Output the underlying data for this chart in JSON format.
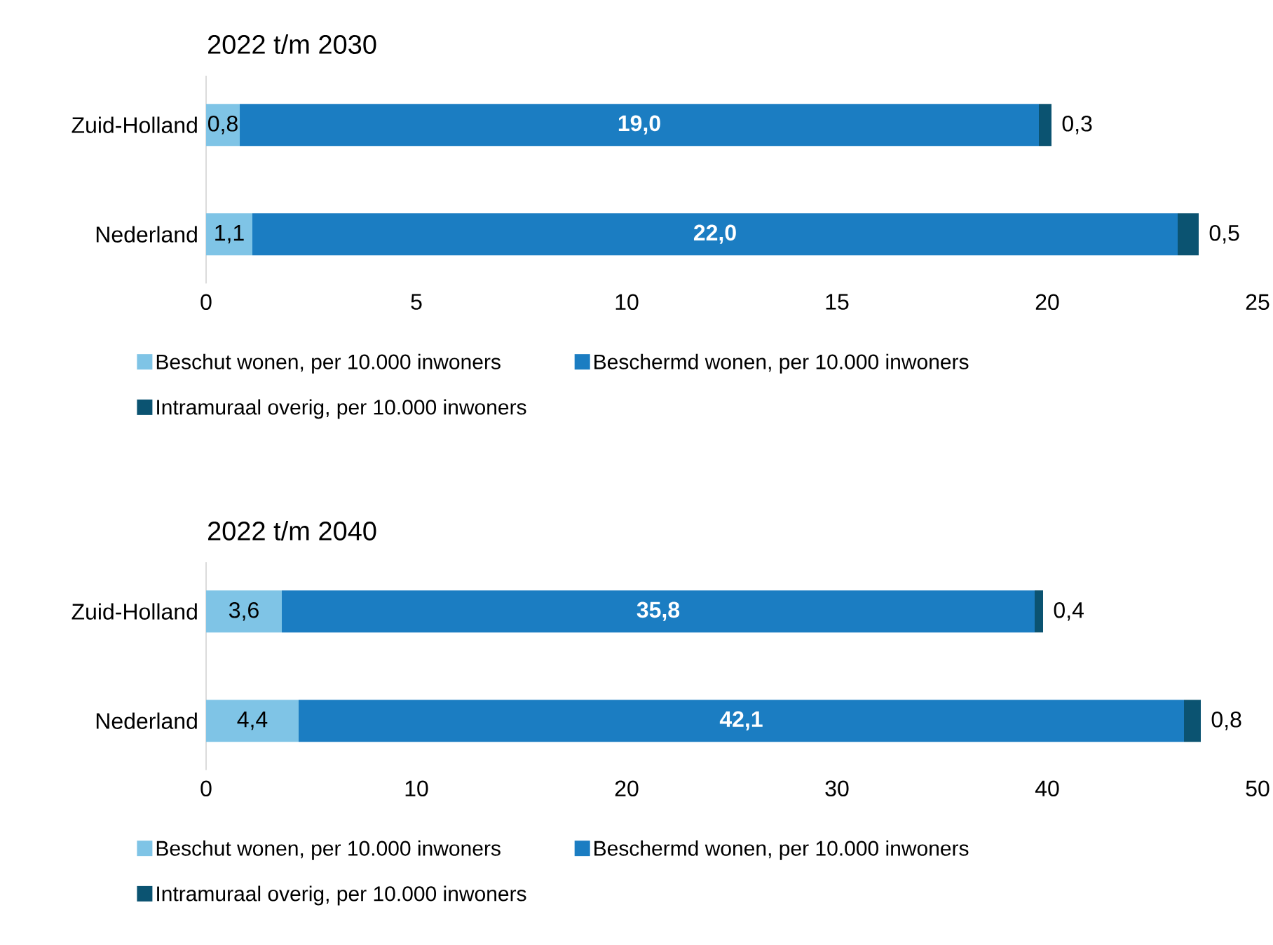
{
  "chart_data": [
    {
      "type": "bar",
      "orientation": "horizontal",
      "stacked": true,
      "title": "2022 t/m 2030",
      "categories": [
        "Zuid-Holland",
        "Nederland"
      ],
      "series": [
        {
          "name": "Beschut wonen, per 10.000 inwoners",
          "color": "#7fc4e6",
          "values": [
            0.8,
            1.1
          ],
          "value_labels": [
            "0,8",
            "1,1"
          ]
        },
        {
          "name": "Beschermd wonen, per 10.000 inwoners",
          "color": "#1b7dc2",
          "values": [
            19.0,
            22.0
          ],
          "value_labels": [
            "19,0",
            "22,0"
          ]
        },
        {
          "name": "Intramuraal overig, per 10.000 inwoners",
          "color": "#0b5371",
          "values": [
            0.3,
            0.5
          ],
          "value_labels": [
            "0,3",
            "0,5"
          ]
        }
      ],
      "xlim": [
        0,
        25
      ],
      "xticks": [
        0,
        5,
        10,
        15,
        20,
        25
      ],
      "legend": "bottom"
    },
    {
      "type": "bar",
      "orientation": "horizontal",
      "stacked": true,
      "title": "2022 t/m 2040",
      "categories": [
        "Zuid-Holland",
        "Nederland"
      ],
      "series": [
        {
          "name": "Beschut wonen, per 10.000 inwoners",
          "color": "#7fc4e6",
          "values": [
            3.6,
            4.4
          ],
          "value_labels": [
            "3,6",
            "4,4"
          ]
        },
        {
          "name": "Beschermd wonen, per 10.000 inwoners",
          "color": "#1b7dc2",
          "values": [
            35.8,
            42.1
          ],
          "value_labels": [
            "35,8",
            "42,1"
          ]
        },
        {
          "name": "Intramuraal overig, per 10.000 inwoners",
          "color": "#0b5371",
          "values": [
            0.4,
            0.8
          ],
          "value_labels": [
            "0,4",
            "0,8"
          ]
        }
      ],
      "xlim": [
        0,
        50
      ],
      "xticks": [
        0,
        10,
        20,
        30,
        40,
        50
      ],
      "legend": "bottom"
    }
  ]
}
